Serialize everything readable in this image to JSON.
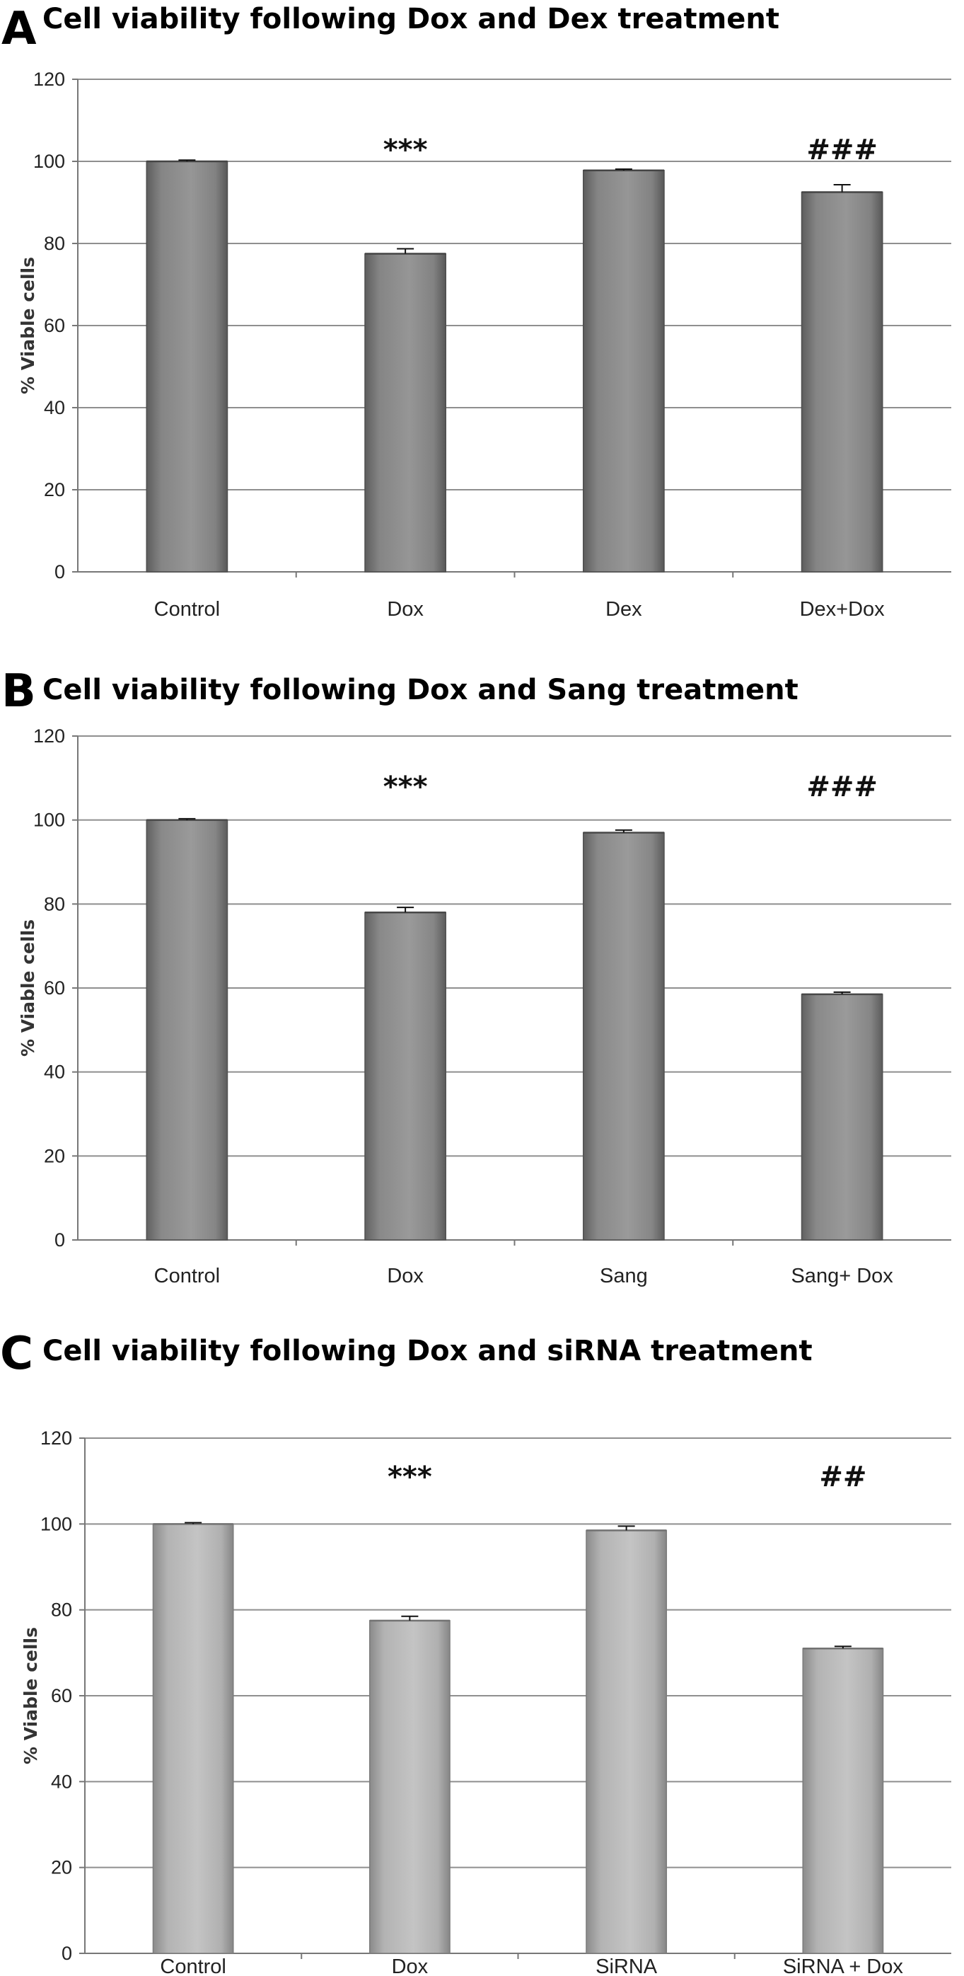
{
  "chart_data": [
    {
      "type": "bar",
      "panel_label": "A",
      "title": "Cell viability following Dox and Dex treatment",
      "ylabel": "% Viable cells",
      "xlabel": "",
      "ylim": [
        0,
        120
      ],
      "yticks": [
        "0",
        "20",
        "40",
        "60",
        "80",
        "100",
        "120"
      ],
      "grid": true,
      "categories": [
        "Control",
        "Dox",
        "Dex",
        "Dex+Dox"
      ],
      "values": [
        100,
        77.5,
        97.8,
        92.5
      ],
      "errors": [
        0.3,
        1.2,
        0.3,
        1.8
      ],
      "annotations": [
        "",
        "***",
        "",
        "###"
      ],
      "bar_color": "#8a8a8a"
    },
    {
      "type": "bar",
      "panel_label": "B",
      "title": "Cell viability following Dox and Sang treatment",
      "ylabel": "% Viable cells",
      "xlabel": "",
      "ylim": [
        0,
        120
      ],
      "yticks": [
        "0",
        "20",
        "40",
        "60",
        "80",
        "100",
        "120"
      ],
      "grid": true,
      "categories": [
        "Control",
        "Dox",
        "Sang",
        "Sang+ Dox"
      ],
      "values": [
        100,
        78,
        97,
        58.5
      ],
      "errors": [
        0.3,
        1.2,
        0.6,
        0.5
      ],
      "annotations": [
        "",
        "***",
        "",
        "###"
      ],
      "bar_color": "#8e8e8e"
    },
    {
      "type": "bar",
      "panel_label": "C",
      "title": "Cell viability following Dox and siRNA treatment",
      "ylabel": "% Viable cells",
      "xlabel": "",
      "ylim": [
        0,
        120
      ],
      "yticks": [
        "0",
        "20",
        "40",
        "60",
        "80",
        "100",
        "120"
      ],
      "grid": true,
      "categories": [
        "Control",
        "Dox",
        "SiRNA",
        "SiRNA + Dox"
      ],
      "values": [
        100,
        77.5,
        98.5,
        71
      ],
      "errors": [
        0.3,
        1.0,
        1.0,
        0.5
      ],
      "annotations": [
        "",
        "***",
        "",
        "##"
      ],
      "bar_color": "#b8b8b8"
    }
  ]
}
